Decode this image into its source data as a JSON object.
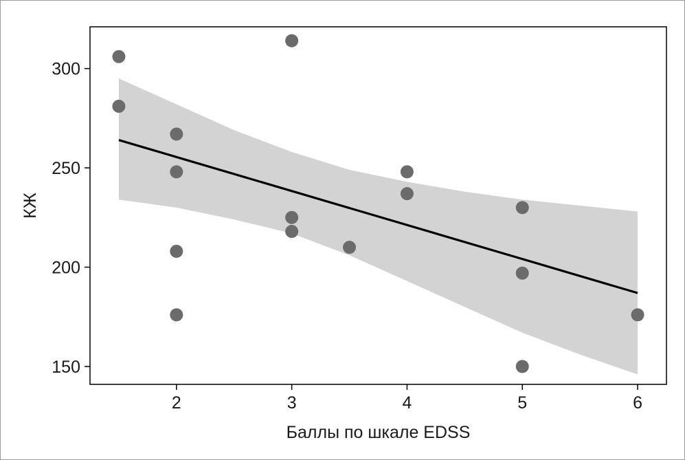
{
  "chart_data": {
    "type": "scatter",
    "xlabel": "Баллы по шкале EDSS",
    "ylabel": "КЖ",
    "xlim": [
      1.25,
      6.25
    ],
    "ylim": [
      141,
      321
    ],
    "x_ticks": [
      2,
      3,
      4,
      5,
      6
    ],
    "x_tick_labels": [
      "2",
      "3",
      "4",
      "5",
      "6"
    ],
    "y_ticks": [
      150,
      200,
      250,
      300
    ],
    "y_tick_labels": [
      "150",
      "200",
      "250",
      "300"
    ],
    "grid": false,
    "colors": {
      "points": "#6b6b6b",
      "line": "#000000",
      "band": "#d3d3d3",
      "frame": "#9a9a9a"
    },
    "points": [
      {
        "x": 1.5,
        "y": 306
      },
      {
        "x": 1.5,
        "y": 281
      },
      {
        "x": 2.0,
        "y": 267
      },
      {
        "x": 2.0,
        "y": 248
      },
      {
        "x": 2.0,
        "y": 208
      },
      {
        "x": 2.0,
        "y": 176
      },
      {
        "x": 3.0,
        "y": 314
      },
      {
        "x": 3.0,
        "y": 225
      },
      {
        "x": 3.0,
        "y": 218
      },
      {
        "x": 3.5,
        "y": 210
      },
      {
        "x": 4.0,
        "y": 248
      },
      {
        "x": 4.0,
        "y": 237
      },
      {
        "x": 5.0,
        "y": 230
      },
      {
        "x": 5.0,
        "y": 197
      },
      {
        "x": 5.0,
        "y": 150
      },
      {
        "x": 6.0,
        "y": 176
      }
    ],
    "regression_line": [
      {
        "x": 1.5,
        "y": 264
      },
      {
        "x": 6.0,
        "y": 187
      }
    ],
    "confidence_band": [
      {
        "x": 1.5,
        "lower": 234,
        "upper": 295
      },
      {
        "x": 2.0,
        "lower": 230,
        "upper": 282
      },
      {
        "x": 2.5,
        "lower": 224,
        "upper": 269
      },
      {
        "x": 3.0,
        "lower": 217,
        "upper": 258
      },
      {
        "x": 3.5,
        "lower": 206,
        "upper": 249
      },
      {
        "x": 4.0,
        "lower": 193,
        "upper": 243
      },
      {
        "x": 4.5,
        "lower": 180,
        "upper": 238
      },
      {
        "x": 5.0,
        "lower": 167,
        "upper": 234
      },
      {
        "x": 5.5,
        "lower": 156,
        "upper": 231
      },
      {
        "x": 6.0,
        "lower": 146,
        "upper": 228
      }
    ]
  }
}
